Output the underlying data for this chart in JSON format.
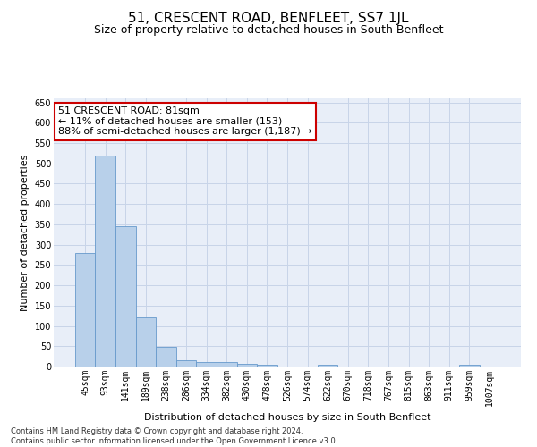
{
  "title": "51, CRESCENT ROAD, BENFLEET, SS7 1JL",
  "subtitle": "Size of property relative to detached houses in South Benfleet",
  "xlabel": "Distribution of detached houses by size in South Benfleet",
  "ylabel": "Number of detached properties",
  "footnote": "Contains HM Land Registry data © Crown copyright and database right 2024.\nContains public sector information licensed under the Open Government Licence v3.0.",
  "annotation_line1": "51 CRESCENT ROAD: 81sqm",
  "annotation_line2": "← 11% of detached houses are smaller (153)",
  "annotation_line3": "88% of semi-detached houses are larger (1,187) →",
  "bar_color": "#b8d0ea",
  "bar_edge_color": "#6699cc",
  "annotation_box_color": "#ffffff",
  "annotation_box_edge": "#cc0000",
  "categories": [
    "45sqm",
    "93sqm",
    "141sqm",
    "189sqm",
    "238sqm",
    "286sqm",
    "334sqm",
    "382sqm",
    "430sqm",
    "478sqm",
    "526sqm",
    "574sqm",
    "622sqm",
    "670sqm",
    "718sqm",
    "767sqm",
    "815sqm",
    "863sqm",
    "911sqm",
    "959sqm",
    "1007sqm"
  ],
  "values": [
    280,
    520,
    345,
    120,
    48,
    16,
    12,
    10,
    6,
    5,
    0,
    0,
    5,
    0,
    0,
    0,
    0,
    0,
    0,
    5,
    0
  ],
  "ylim": [
    0,
    660
  ],
  "yticks": [
    0,
    50,
    100,
    150,
    200,
    250,
    300,
    350,
    400,
    450,
    500,
    550,
    600,
    650
  ],
  "grid_color": "#c8d4e8",
  "bg_color": "#e8eef8",
  "title_fontsize": 11,
  "subtitle_fontsize": 9,
  "axis_label_fontsize": 8,
  "tick_fontsize": 7,
  "annotation_fontsize": 8,
  "footnote_fontsize": 6
}
